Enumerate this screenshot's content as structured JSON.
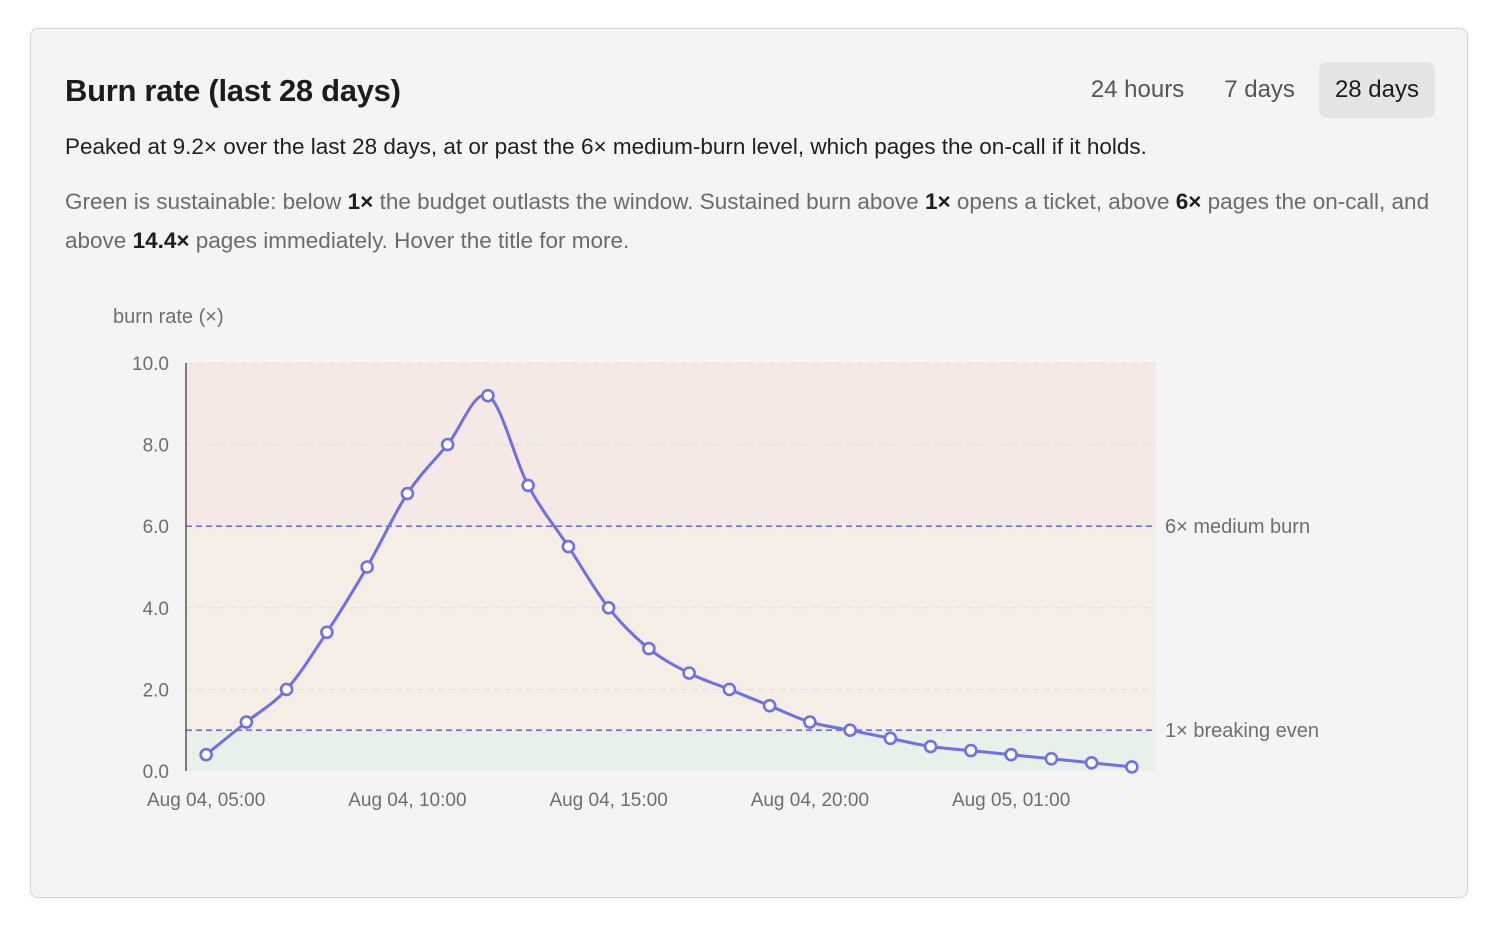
{
  "card": {
    "title": "Burn rate (last 28 days)",
    "ranges": [
      {
        "label": "24 hours",
        "active": false
      },
      {
        "label": "7 days",
        "active": false
      },
      {
        "label": "28 days",
        "active": true
      }
    ],
    "summary": "Peaked at 9.2× over the last 28 days, at or past the 6× medium-burn level, which pages the on-call if it holds.",
    "explain": {
      "t1": "Green is sustainable: below ",
      "b1": "1×",
      "t2": " the budget outlasts the window. Sustained burn above ",
      "b2": "1×",
      "t3": " opens a ticket, above ",
      "b3": "6×",
      "t4": " pages the on-call, and above ",
      "b4": "14.4×",
      "t5": " pages immediately. Hover the title for more."
    }
  },
  "colors": {
    "line": "#6f6fe8",
    "threshold": "#6f6fe8",
    "zone_green": "#e7f1ea",
    "zone_amber": "#f5eee6",
    "zone_red": "#f5e9e6",
    "axis_text": "#6e6e6e"
  },
  "chart_data": {
    "type": "line",
    "ylabel": "burn rate (×)",
    "ylim": [
      0,
      10
    ],
    "yticks": [
      "0.0",
      "2.0",
      "4.0",
      "6.0",
      "8.0",
      "10.0"
    ],
    "xticks": [
      {
        "label": "Aug 04, 05:00",
        "x": 0
      },
      {
        "label": "Aug 04, 10:00",
        "x": 5
      },
      {
        "label": "Aug 04, 15:00",
        "x": 10
      },
      {
        "label": "Aug 04, 20:00",
        "x": 15
      },
      {
        "label": "Aug 05, 01:00",
        "x": 20
      }
    ],
    "x_range": [
      -0.5,
      23.6
    ],
    "series": [
      {
        "x": [
          0,
          1,
          2,
          3,
          4,
          5,
          6,
          7,
          8,
          9,
          10,
          11,
          12,
          13,
          14,
          15,
          16,
          17,
          18,
          19,
          20,
          21,
          22,
          23
        ],
        "values": [
          0.4,
          1.2,
          2.0,
          3.4,
          5.0,
          6.8,
          8.0,
          9.2,
          7.0,
          5.5,
          4.0,
          3.0,
          2.4,
          2.0,
          1.6,
          1.2,
          1.0,
          0.8,
          0.6,
          0.5,
          0.4,
          0.3,
          0.2,
          0.1
        ]
      }
    ],
    "thresholds": [
      {
        "value": 6,
        "label": "6× medium burn"
      },
      {
        "value": 1,
        "label": "1× breaking even"
      }
    ],
    "zones": [
      {
        "from": 0,
        "to": 1,
        "color": "green"
      },
      {
        "from": 1,
        "to": 6,
        "color": "amber"
      },
      {
        "from": 6,
        "to": 10,
        "color": "red"
      }
    ],
    "grid": true
  }
}
